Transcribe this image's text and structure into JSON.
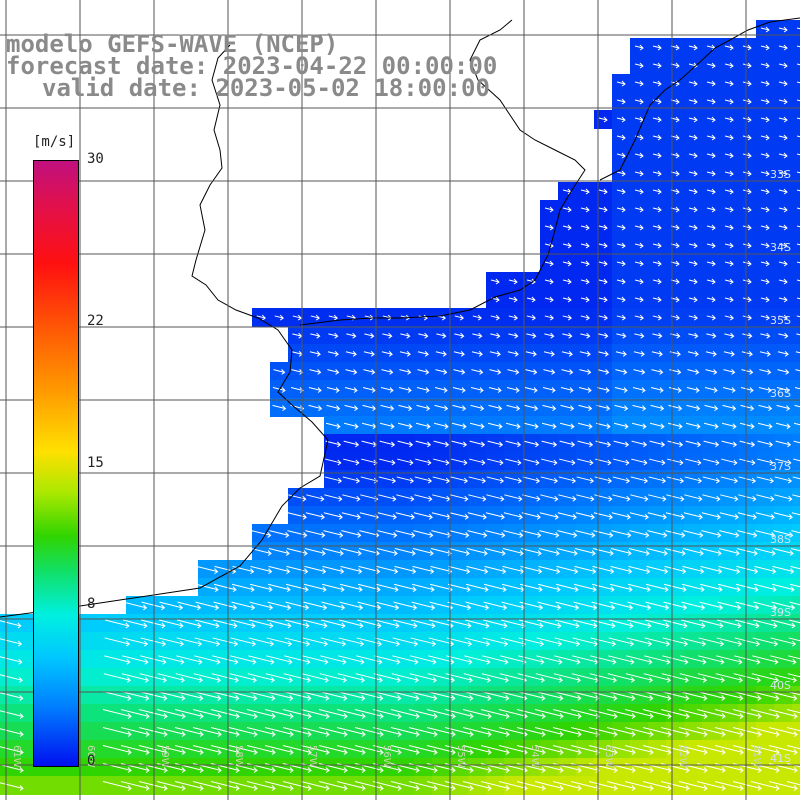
{
  "titles": {
    "line1": "modelo GEFS-WAVE (NCEP)",
    "line2": "forecast date: 2023-04-22 00:00:00",
    "line3": "valid date: 2023-05-02 18:00:00"
  },
  "colorbar": {
    "units": "[m/s]",
    "ticks": [
      "30",
      "22",
      "15",
      "8",
      "0"
    ],
    "tick_values": [
      30,
      22,
      15,
      8,
      0
    ]
  },
  "map_labels": {
    "latitudes": [
      "33S",
      "34S",
      "35S",
      "36S",
      "37S",
      "38S",
      "39S",
      "40S",
      "41S"
    ],
    "longitudes": [
      "61W",
      "60W",
      "59W",
      "58W",
      "57W",
      "56W",
      "55W",
      "54W",
      "53W",
      "52W",
      "51W"
    ]
  },
  "colors": {
    "title": "#8a8a8a",
    "grid": "#000000",
    "land": "#ffffff",
    "coast": "#000000",
    "arrows": "#ffffff"
  }
}
